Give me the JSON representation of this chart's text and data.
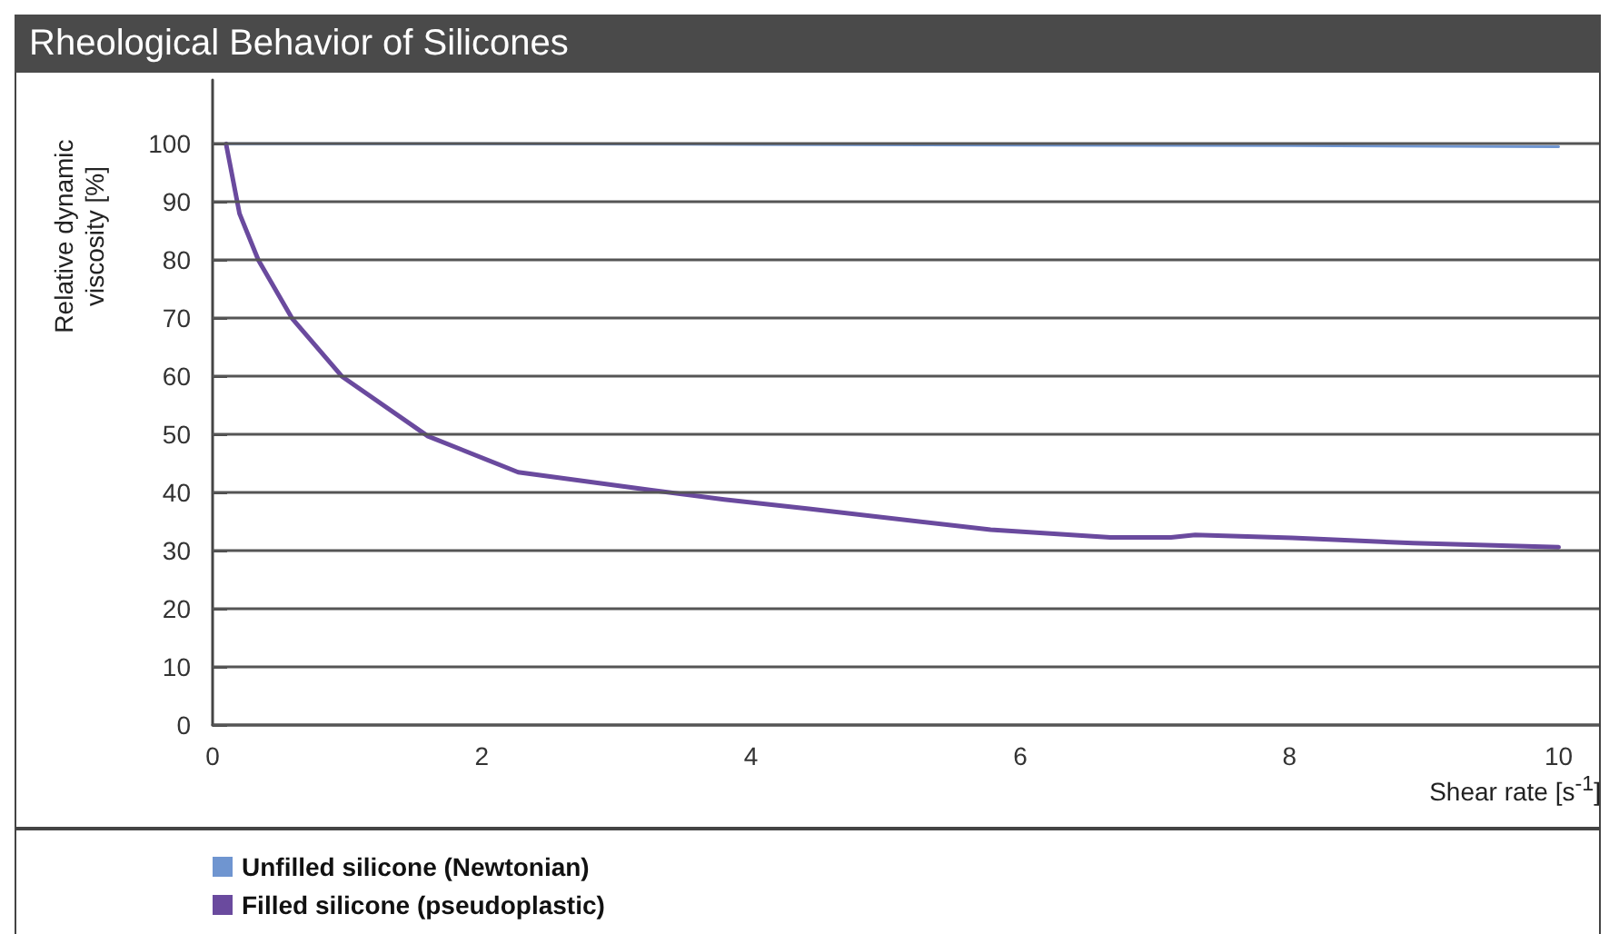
{
  "chart_data": {
    "type": "line",
    "title": "Rheological Behavior of Silicones",
    "xlabel": "Shear rate [s$^{-1}$]",
    "ylabel": "Relative dynamic viscosity [%]",
    "xlim": [
      0,
      10.3
    ],
    "xticks": [
      0,
      2,
      4,
      6,
      8,
      10
    ],
    "ylim": [
      0,
      111
    ],
    "yticks": [
      0,
      10,
      20,
      30,
      40,
      50,
      60,
      70,
      80,
      90,
      100
    ],
    "grid": "y",
    "legend": "bottom left",
    "marker": "none",
    "line_style": "solid",
    "series": [
      {
        "name": "Unfilled silicone (Newtonian)",
        "color": "#6f95d0",
        "x": [
          0.1,
          2,
          4,
          6,
          8,
          10
        ],
        "values": [
          100,
          100,
          99.9,
          99.8,
          99.7,
          99.5
        ]
      },
      {
        "name": "Filled silicone (pseudoplastic)",
        "color": "#6a4a9e",
        "x": [
          0.1,
          0.2,
          0.34,
          0.59,
          0.96,
          1.6,
          2.27,
          3.26,
          3.8,
          4.43,
          5.78,
          6.67,
          7.12,
          7.3,
          8.02,
          8.92,
          10
        ],
        "values": [
          100,
          88,
          80,
          70,
          60,
          49.7,
          43.5,
          40.4,
          38.8,
          37.2,
          33.6,
          32.3,
          32.3,
          32.7,
          32.2,
          31.3,
          30.6
        ]
      }
    ]
  }
}
